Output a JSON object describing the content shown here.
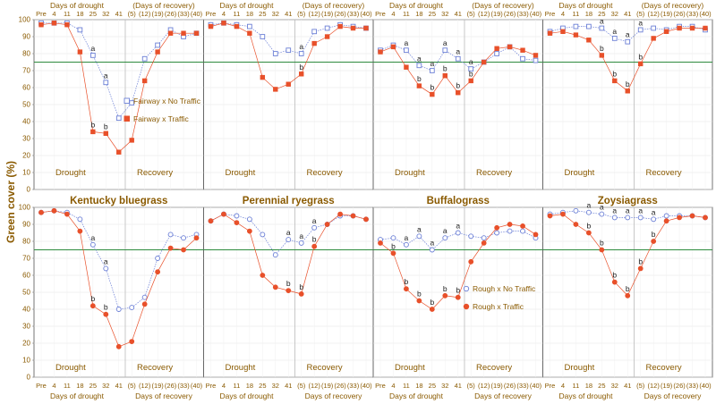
{
  "figure": {
    "ylabel": "Green cover (%)",
    "top_axis_left": "Days of drought",
    "top_axis_right": "(Days of recovery)",
    "bottom_axis_left": "Days of drought",
    "bottom_axis_right": "Days of recovery",
    "phase_drought": "Drought",
    "phase_recovery": "Recovery",
    "yticks": [
      "0",
      "10",
      "20",
      "30",
      "40",
      "50",
      "60",
      "70",
      "80",
      "90",
      "100"
    ]
  },
  "colors": {
    "no_traffic": "#6b7fd6",
    "traffic": "#e8502a",
    "reference_line": "#2e8b3e",
    "text": "#8a5a00",
    "panel_border": "#666666"
  },
  "chart_data": [
    {
      "type": "line",
      "row": "top",
      "title": "",
      "x_ticks": [
        "Pre",
        "4",
        "11",
        "18",
        "25",
        "32",
        "41",
        "(5)",
        "(12)",
        "(19)",
        "(26)",
        "(33)",
        "(40)"
      ],
      "ylim": [
        0,
        100
      ],
      "reference_line": 75,
      "legend": {
        "placement": "right-middle",
        "marker_open": "Fairway x No Traffic",
        "marker_filled": "Fairway x Traffic"
      },
      "series": [
        {
          "name": "Fairway x No Traffic",
          "marker": "open-square",
          "values": [
            98,
            98,
            98,
            94,
            79,
            63,
            42,
            51,
            77,
            85,
            94,
            90,
            92
          ]
        },
        {
          "name": "Fairway x Traffic",
          "marker": "filled-square",
          "values": [
            97,
            98,
            97,
            81,
            34,
            33,
            22,
            29,
            64,
            81,
            92,
            92,
            92
          ]
        }
      ],
      "annotations": [
        {
          "x": "25",
          "label": "a",
          "series": 0
        },
        {
          "x": "32",
          "label": "a",
          "series": 0
        },
        {
          "x": "25",
          "label": "b",
          "series": 1
        },
        {
          "x": "32",
          "label": "b",
          "series": 1
        }
      ]
    },
    {
      "type": "line",
      "row": "top",
      "title": "",
      "x_ticks": [
        "Pre",
        "4",
        "11",
        "18",
        "25",
        "32",
        "41",
        "(5)",
        "(12)",
        "(19)",
        "(26)",
        "(33)",
        "(40)"
      ],
      "ylim": [
        0,
        100
      ],
      "reference_line": 75,
      "series": [
        {
          "name": "Fairway x No Traffic",
          "marker": "open-square",
          "values": [
            97,
            98,
            97,
            96,
            90,
            80,
            82,
            80,
            93,
            95,
            97,
            96,
            95
          ]
        },
        {
          "name": "Fairway x Traffic",
          "marker": "filled-square",
          "values": [
            96,
            98,
            96,
            92,
            66,
            59,
            62,
            68,
            86,
            90,
            96,
            95,
            95
          ]
        }
      ],
      "annotations": [
        {
          "x": "(5)",
          "label": "a",
          "series": 0
        },
        {
          "x": "(5)",
          "label": "b",
          "series": 1
        }
      ]
    },
    {
      "type": "line",
      "row": "top",
      "title": "",
      "x_ticks": [
        "Pre",
        "4",
        "11",
        "18",
        "25",
        "32",
        "41",
        "(5)",
        "(12)",
        "(19)",
        "(26)",
        "(33)",
        "(40)"
      ],
      "ylim": [
        0,
        100
      ],
      "reference_line": 75,
      "series": [
        {
          "name": "Fairway x No Traffic",
          "marker": "open-square",
          "values": [
            82,
            85,
            82,
            73,
            70,
            82,
            77,
            71,
            75,
            80,
            84,
            77,
            76
          ]
        },
        {
          "name": "Fairway x Traffic",
          "marker": "filled-square",
          "values": [
            81,
            84,
            72,
            61,
            56,
            67,
            57,
            64,
            75,
            83,
            84,
            82,
            79
          ]
        }
      ],
      "annotations": [
        {
          "x": "11",
          "label": "a",
          "series": 0
        },
        {
          "x": "18",
          "label": "a",
          "series": 0
        },
        {
          "x": "25",
          "label": "a",
          "series": 0
        },
        {
          "x": "32",
          "label": "a",
          "series": 0
        },
        {
          "x": "41",
          "label": "a",
          "series": 0
        },
        {
          "x": "(5)",
          "label": "a",
          "series": 0
        },
        {
          "x": "18",
          "label": "b",
          "series": 1
        },
        {
          "x": "25",
          "label": "b",
          "series": 1
        },
        {
          "x": "32",
          "label": "b",
          "series": 1
        },
        {
          "x": "41",
          "label": "b",
          "series": 1
        },
        {
          "x": "(5)",
          "label": "b",
          "series": 1
        }
      ]
    },
    {
      "type": "line",
      "row": "top",
      "title": "",
      "x_ticks": [
        "Pre",
        "4",
        "11",
        "18",
        "25",
        "32",
        "41",
        "(5)",
        "(12)",
        "(19)",
        "(26)",
        "(33)",
        "(40)"
      ],
      "ylim": [
        0,
        100
      ],
      "reference_line": 75,
      "series": [
        {
          "name": "Fairway x No Traffic",
          "marker": "open-square",
          "values": [
            93,
            95,
            96,
            96,
            95,
            89,
            87,
            94,
            95,
            94,
            96,
            96,
            94
          ]
        },
        {
          "name": "Fairway x Traffic",
          "marker": "filled-square",
          "values": [
            92,
            93,
            91,
            88,
            79,
            64,
            58,
            74,
            89,
            93,
            95,
            95,
            95
          ]
        }
      ],
      "annotations": [
        {
          "x": "25",
          "label": "a",
          "series": 0
        },
        {
          "x": "32",
          "label": "a",
          "series": 0
        },
        {
          "x": "41",
          "label": "a",
          "series": 0
        },
        {
          "x": "(5)",
          "label": "a",
          "series": 0
        },
        {
          "x": "25",
          "label": "b",
          "series": 1
        },
        {
          "x": "32",
          "label": "b",
          "series": 1
        },
        {
          "x": "41",
          "label": "b",
          "series": 1
        },
        {
          "x": "(5)",
          "label": "b",
          "series": 1
        }
      ]
    },
    {
      "type": "line",
      "row": "bottom",
      "title": "Kentucky bluegrass",
      "x_ticks": [
        "Pre",
        "4",
        "11",
        "18",
        "25",
        "32",
        "41",
        "(5)",
        "(12)",
        "(19)",
        "(26)",
        "(33)",
        "(40)"
      ],
      "ylim": [
        0,
        100
      ],
      "reference_line": 75,
      "series": [
        {
          "name": "Rough x No Traffic",
          "marker": "open-circle",
          "values": [
            97,
            98,
            97,
            93,
            78,
            64,
            40,
            41,
            47,
            70,
            84,
            82,
            84
          ]
        },
        {
          "name": "Rough x Traffic",
          "marker": "filled-circle",
          "values": [
            97,
            98,
            96,
            86,
            42,
            37,
            18,
            21,
            43,
            62,
            76,
            75,
            82
          ]
        }
      ],
      "annotations": [
        {
          "x": "25",
          "label": "a",
          "series": 0
        },
        {
          "x": "32",
          "label": "a",
          "series": 0
        },
        {
          "x": "25",
          "label": "b",
          "series": 1
        },
        {
          "x": "32",
          "label": "b",
          "series": 1
        }
      ]
    },
    {
      "type": "line",
      "row": "bottom",
      "title": "Perennial ryegrass",
      "x_ticks": [
        "Pre",
        "4",
        "11",
        "18",
        "25",
        "32",
        "41",
        "(5)",
        "(12)",
        "(19)",
        "(26)",
        "(33)",
        "(40)"
      ],
      "ylim": [
        0,
        100
      ],
      "reference_line": 75,
      "series": [
        {
          "name": "Rough x No Traffic",
          "marker": "open-circle",
          "values": [
            92,
            96,
            95,
            93,
            84,
            72,
            81,
            79,
            88,
            90,
            95,
            95,
            93
          ]
        },
        {
          "name": "Rough x Traffic",
          "marker": "filled-circle",
          "values": [
            92,
            96,
            91,
            86,
            60,
            53,
            51,
            49,
            77,
            90,
            96,
            95,
            93
          ]
        }
      ],
      "annotations": [
        {
          "x": "41",
          "label": "a",
          "series": 0
        },
        {
          "x": "(5)",
          "label": "a",
          "series": 0
        },
        {
          "x": "(12)",
          "label": "a",
          "series": 0
        },
        {
          "x": "41",
          "label": "b",
          "series": 1
        },
        {
          "x": "(5)",
          "label": "b",
          "series": 1
        },
        {
          "x": "(12)",
          "label": "b",
          "series": 1
        }
      ]
    },
    {
      "type": "line",
      "row": "bottom",
      "title": "Buffalograss",
      "x_ticks": [
        "Pre",
        "4",
        "11",
        "18",
        "25",
        "32",
        "41",
        "(5)",
        "(12)",
        "(19)",
        "(26)",
        "(33)",
        "(40)"
      ],
      "ylim": [
        0,
        100
      ],
      "reference_line": 75,
      "legend": {
        "placement": "right-middle",
        "marker_open": "Rough x No Traffic",
        "marker_filled": "Rough x Traffic"
      },
      "series": [
        {
          "name": "Rough x No Traffic",
          "marker": "open-circle",
          "values": [
            81,
            82,
            78,
            83,
            75,
            82,
            85,
            83,
            82,
            85,
            86,
            86,
            82
          ]
        },
        {
          "name": "Rough x Traffic",
          "marker": "filled-circle",
          "values": [
            79,
            73,
            52,
            45,
            40,
            48,
            47,
            68,
            79,
            88,
            90,
            89,
            84
          ]
        }
      ],
      "annotations": [
        {
          "x": "11",
          "label": "a",
          "series": 0
        },
        {
          "x": "18",
          "label": "a",
          "series": 0
        },
        {
          "x": "25",
          "label": "a",
          "series": 0
        },
        {
          "x": "32",
          "label": "a",
          "series": 0
        },
        {
          "x": "41",
          "label": "a",
          "series": 0
        },
        {
          "x": "4",
          "label": "b",
          "series": 1
        },
        {
          "x": "11",
          "label": "b",
          "series": 1
        },
        {
          "x": "18",
          "label": "b",
          "series": 1
        },
        {
          "x": "25",
          "label": "b",
          "series": 1
        },
        {
          "x": "32",
          "label": "b",
          "series": 1
        },
        {
          "x": "41",
          "label": "b",
          "series": 1
        }
      ]
    },
    {
      "type": "line",
      "row": "bottom",
      "title": "Zoysiagrass",
      "x_ticks": [
        "Pre",
        "4",
        "11",
        "18",
        "25",
        "32",
        "41",
        "(5)",
        "(12)",
        "(19)",
        "(26)",
        "(33)",
        "(40)"
      ],
      "ylim": [
        0,
        100
      ],
      "reference_line": 75,
      "series": [
        {
          "name": "Rough x No Traffic",
          "marker": "open-circle",
          "values": [
            96,
            97,
            98,
            97,
            96,
            94,
            94,
            94,
            93,
            95,
            95,
            95,
            94
          ]
        },
        {
          "name": "Rough x Traffic",
          "marker": "filled-circle",
          "values": [
            95,
            96,
            90,
            85,
            75,
            56,
            48,
            64,
            80,
            92,
            94,
            95,
            94
          ]
        }
      ],
      "annotations": [
        {
          "x": "18",
          "label": "a",
          "series": 0
        },
        {
          "x": "25",
          "label": "a",
          "series": 0
        },
        {
          "x": "32",
          "label": "a",
          "series": 0
        },
        {
          "x": "41",
          "label": "a",
          "series": 0
        },
        {
          "x": "(5)",
          "label": "a",
          "series": 0
        },
        {
          "x": "(12)",
          "label": "a",
          "series": 0
        },
        {
          "x": "18",
          "label": "b",
          "series": 1
        },
        {
          "x": "25",
          "label": "b",
          "series": 1
        },
        {
          "x": "32",
          "label": "b",
          "series": 1
        },
        {
          "x": "41",
          "label": "b",
          "series": 1
        },
        {
          "x": "(5)",
          "label": "b",
          "series": 1
        },
        {
          "x": "(12)",
          "label": "b",
          "series": 1
        }
      ]
    }
  ]
}
